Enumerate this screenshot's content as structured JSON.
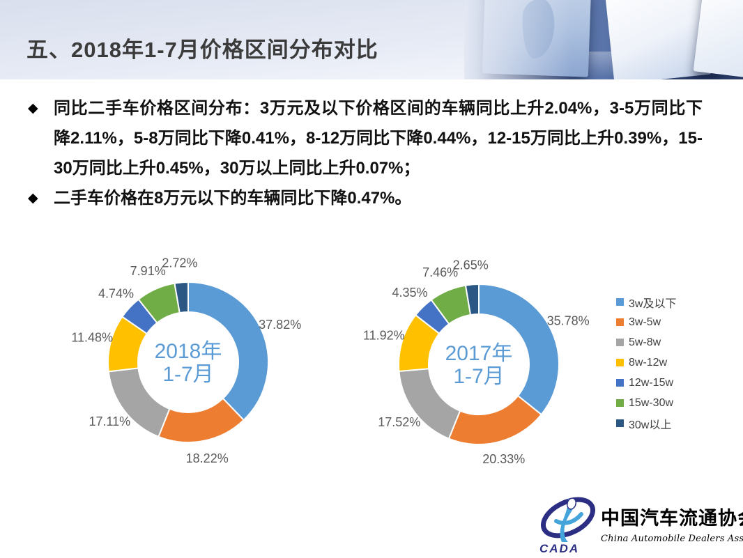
{
  "slide": {
    "title": "五、2018年1-7月价格区间分布对比",
    "bullets": [
      "同比二手车价格区间分布：3万元及以下价格区间的车辆同比上升2.04%，3-5万同比下降2.11%，5-8万同比下降0.41%，8-12万同比下降0.44%，12-15万同比上升0.39%，15-30万同比上升0.45%，30万以上同比上升0.07%；",
      "二手车价格在8万元以下的车辆同比下降0.47%。"
    ],
    "bullet_marker": "◆"
  },
  "chart_data": [
    {
      "type": "pie",
      "subtype": "donut",
      "title": "2018年1-7月",
      "center_label": [
        "2018年",
        "1-7月"
      ],
      "categories": [
        "3w及以下",
        "3w-5w",
        "5w-8w",
        "8w-12w",
        "12w-15w",
        "15w-30w",
        "30w以上"
      ],
      "values": [
        37.82,
        18.22,
        17.11,
        11.48,
        4.74,
        7.91,
        2.72
      ],
      "labels": [
        "37.82%",
        "18.22%",
        "17.11%",
        "11.48%",
        "4.74%",
        "7.91%",
        "2.72%"
      ],
      "colors": [
        "#5B9BD5",
        "#ED7D31",
        "#A5A5A5",
        "#FFC000",
        "#4472C4",
        "#70AD47",
        "#2A5783"
      ],
      "start_angle": 0,
      "direction": "clockwise",
      "legend_position": "right"
    },
    {
      "type": "pie",
      "subtype": "donut",
      "title": "2017年1-7月",
      "center_label": [
        "2017年",
        "1-7月"
      ],
      "categories": [
        "3w及以下",
        "3w-5w",
        "5w-8w",
        "8w-12w",
        "12w-15w",
        "15w-30w",
        "30w以上"
      ],
      "values": [
        35.78,
        20.33,
        17.52,
        11.92,
        4.35,
        7.46,
        2.65
      ],
      "labels": [
        "35.78%",
        "20.33%",
        "17.52%",
        "11.92%",
        "4.35%",
        "7.46%",
        "2.65%"
      ],
      "colors": [
        "#5B9BD5",
        "#ED7D31",
        "#A5A5A5",
        "#FFC000",
        "#4472C4",
        "#70AD47",
        "#2A5783"
      ],
      "start_angle": 0,
      "direction": "clockwise",
      "legend_position": "right"
    }
  ],
  "legend": {
    "items": [
      {
        "label": "3w及以下",
        "color": "#5B9BD5"
      },
      {
        "label": "3w-5w",
        "color": "#ED7D31"
      },
      {
        "label": "5w-8w",
        "color": "#A5A5A5"
      },
      {
        "label": "8w-12w",
        "color": "#FFC000"
      },
      {
        "label": "12w-15w",
        "color": "#4472C4"
      },
      {
        "label": "15w-30w",
        "color": "#70AD47"
      },
      {
        "label": "30w以上",
        "color": "#2A5783"
      }
    ]
  },
  "logo": {
    "acronym": "CADA",
    "name_zh": "中国汽车流通协会",
    "name_en": "China Automobile Dealers Association"
  },
  "colors": {
    "center_label": "#5B9BD5",
    "slice_label": "#595959",
    "title_text": "#3B3B3B"
  }
}
